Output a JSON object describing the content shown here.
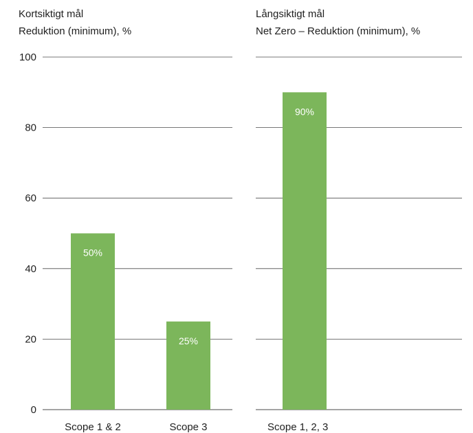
{
  "chart_data": [
    {
      "type": "bar",
      "title": "Kortsiktigt mål",
      "subtitle": "Reduktion (minimum), %",
      "categories": [
        "Scope 1 & 2",
        "Scope 3"
      ],
      "values": [
        50,
        25
      ],
      "data_labels": [
        "50%",
        "25%"
      ],
      "ylim": [
        0,
        100
      ],
      "yticks": [
        0,
        20,
        40,
        60,
        80,
        100
      ],
      "ytick_labels": [
        "0",
        "20",
        "40",
        "60",
        "80",
        "100"
      ],
      "grid": true,
      "legend": "none",
      "bar_color": "#7cb65b"
    },
    {
      "type": "bar",
      "title": "Långsiktigt mål",
      "subtitle": "Net Zero – Reduktion (minimum), %",
      "categories": [
        "Scope 1, 2, 3"
      ],
      "values": [
        90
      ],
      "data_labels": [
        "90%"
      ],
      "ylim": [
        0,
        100
      ],
      "grid": true,
      "legend": "none",
      "bar_color": "#7cb65b"
    }
  ],
  "colors": {
    "bar": "#7cb65b",
    "gridline": "#4a4a4a",
    "text": "#1f1f1f",
    "label": "#ffffff"
  }
}
